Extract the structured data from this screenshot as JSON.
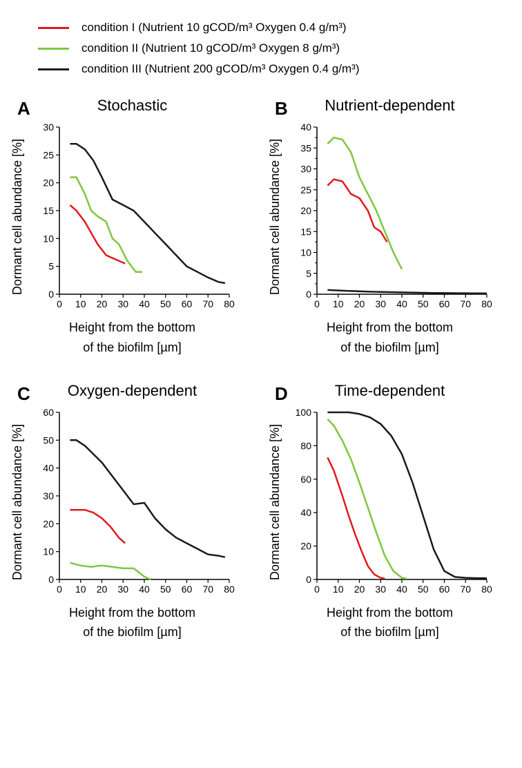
{
  "legend": {
    "items": [
      {
        "label": "condition I   (Nutrient 10 gCOD/m³ Oxygen 0.4 g/m³)",
        "color": "#e31a1c"
      },
      {
        "label": "condition II  (Nutrient 10 gCOD/m³ Oxygen 8 g/m³)",
        "color": "#7ec63f"
      },
      {
        "label": "condition III (Nutrient 200 gCOD/m³ Oxygen 0.4 g/m³)",
        "color": "#1a1a1a"
      }
    ]
  },
  "axis_labels": {
    "y": "Dormant cell abundance [%]",
    "x_line1": "Height from the bottom",
    "x_line2": "of the biofilm [µm]"
  },
  "colors": {
    "cond1": "#e31a1c",
    "cond2": "#7ec63f",
    "cond3": "#1a1a1a",
    "axis": "#000000",
    "bg": "#ffffff"
  },
  "style": {
    "line_width": 2.5,
    "axis_width": 1.5,
    "tick_len": 5,
    "minor_tick_len": 3,
    "title_fontsize": 22,
    "label_fontsize": 18,
    "tick_fontsize": 14,
    "letter_fontsize": 26
  },
  "panels": [
    {
      "id": "A",
      "title": "Stochastic",
      "xlim": [
        0,
        80
      ],
      "xticks": [
        0,
        10,
        20,
        30,
        40,
        50,
        60,
        70,
        80
      ],
      "ylim": [
        0,
        30
      ],
      "yticks": [
        0,
        5,
        10,
        15,
        20,
        25,
        30
      ],
      "series": {
        "cond1": [
          [
            5,
            16
          ],
          [
            8,
            15
          ],
          [
            12,
            13
          ],
          [
            15,
            11
          ],
          [
            18,
            9
          ],
          [
            22,
            7
          ],
          [
            25,
            6.5
          ],
          [
            28,
            6
          ],
          [
            31,
            5.5
          ]
        ],
        "cond2": [
          [
            5,
            21
          ],
          [
            8,
            21
          ],
          [
            12,
            18
          ],
          [
            15,
            15
          ],
          [
            18,
            14
          ],
          [
            22,
            13
          ],
          [
            25,
            10
          ],
          [
            28,
            9
          ],
          [
            32,
            6
          ],
          [
            36,
            4
          ],
          [
            39,
            4
          ]
        ],
        "cond3": [
          [
            5,
            27
          ],
          [
            8,
            27
          ],
          [
            12,
            26
          ],
          [
            16,
            24
          ],
          [
            20,
            21
          ],
          [
            25,
            17
          ],
          [
            30,
            16
          ],
          [
            35,
            15
          ],
          [
            40,
            13
          ],
          [
            45,
            11
          ],
          [
            50,
            9
          ],
          [
            55,
            7
          ],
          [
            60,
            5
          ],
          [
            65,
            4
          ],
          [
            70,
            3
          ],
          [
            75,
            2.2
          ],
          [
            78,
            2
          ]
        ]
      }
    },
    {
      "id": "B",
      "title": "Nutrient-dependent",
      "xlim": [
        0,
        80
      ],
      "xticks": [
        0,
        10,
        20,
        30,
        40,
        50,
        60,
        70,
        80
      ],
      "ylim": [
        0,
        40
      ],
      "yticks": [
        0,
        5,
        10,
        15,
        20,
        25,
        30,
        35,
        40
      ],
      "y_minor_step": 2.5,
      "series": {
        "cond1": [
          [
            5,
            26
          ],
          [
            8,
            27.5
          ],
          [
            12,
            27
          ],
          [
            16,
            24
          ],
          [
            20,
            23
          ],
          [
            24,
            20
          ],
          [
            27,
            16
          ],
          [
            30,
            15
          ],
          [
            33,
            12.5
          ]
        ],
        "cond2": [
          [
            5,
            36
          ],
          [
            8,
            37.5
          ],
          [
            12,
            37
          ],
          [
            16,
            34
          ],
          [
            20,
            28
          ],
          [
            24,
            24
          ],
          [
            28,
            20
          ],
          [
            32,
            15
          ],
          [
            36,
            10
          ],
          [
            40,
            6
          ]
        ],
        "cond3": [
          [
            5,
            1
          ],
          [
            15,
            0.8
          ],
          [
            25,
            0.6
          ],
          [
            35,
            0.5
          ],
          [
            45,
            0.4
          ],
          [
            55,
            0.3
          ],
          [
            65,
            0.25
          ],
          [
            75,
            0.2
          ],
          [
            80,
            0.2
          ]
        ]
      }
    },
    {
      "id": "C",
      "title": "Oxygen-dependent",
      "xlim": [
        0,
        80
      ],
      "xticks": [
        0,
        10,
        20,
        30,
        40,
        50,
        60,
        70,
        80
      ],
      "ylim": [
        0,
        60
      ],
      "yticks": [
        0,
        10,
        20,
        30,
        40,
        50,
        60
      ],
      "series": {
        "cond1": [
          [
            5,
            25
          ],
          [
            8,
            25
          ],
          [
            12,
            25
          ],
          [
            16,
            24
          ],
          [
            20,
            22
          ],
          [
            24,
            19
          ],
          [
            28,
            15
          ],
          [
            31,
            13
          ]
        ],
        "cond2": [
          [
            5,
            6
          ],
          [
            10,
            5
          ],
          [
            15,
            4.5
          ],
          [
            20,
            5
          ],
          [
            25,
            4.5
          ],
          [
            30,
            4
          ],
          [
            35,
            4
          ],
          [
            40,
            1
          ],
          [
            43,
            0
          ]
        ],
        "cond3": [
          [
            5,
            50
          ],
          [
            8,
            50
          ],
          [
            12,
            48
          ],
          [
            16,
            45
          ],
          [
            20,
            42
          ],
          [
            25,
            37
          ],
          [
            30,
            32
          ],
          [
            35,
            27
          ],
          [
            40,
            27.5
          ],
          [
            45,
            22
          ],
          [
            50,
            18
          ],
          [
            55,
            15
          ],
          [
            60,
            13
          ],
          [
            65,
            11
          ],
          [
            70,
            9
          ],
          [
            75,
            8.5
          ],
          [
            78,
            8
          ]
        ]
      }
    },
    {
      "id": "D",
      "title": "Time-dependent",
      "xlim": [
        0,
        80
      ],
      "xticks": [
        0,
        10,
        20,
        30,
        40,
        50,
        60,
        70,
        80
      ],
      "ylim": [
        0,
        100
      ],
      "yticks": [
        0,
        20,
        40,
        60,
        80,
        100
      ],
      "series": {
        "cond1": [
          [
            5,
            73
          ],
          [
            8,
            65
          ],
          [
            12,
            50
          ],
          [
            15,
            38
          ],
          [
            18,
            27
          ],
          [
            21,
            17
          ],
          [
            24,
            8
          ],
          [
            27,
            3
          ],
          [
            30,
            1
          ],
          [
            32,
            0.5
          ]
        ],
        "cond2": [
          [
            5,
            96
          ],
          [
            8,
            92
          ],
          [
            12,
            83
          ],
          [
            16,
            72
          ],
          [
            20,
            58
          ],
          [
            24,
            43
          ],
          [
            28,
            28
          ],
          [
            32,
            14
          ],
          [
            36,
            5
          ],
          [
            40,
            1
          ],
          [
            42,
            0.5
          ]
        ],
        "cond3": [
          [
            5,
            100
          ],
          [
            10,
            100
          ],
          [
            15,
            100
          ],
          [
            20,
            99
          ],
          [
            25,
            97
          ],
          [
            30,
            93
          ],
          [
            35,
            86
          ],
          [
            40,
            75
          ],
          [
            45,
            58
          ],
          [
            50,
            38
          ],
          [
            55,
            18
          ],
          [
            60,
            5
          ],
          [
            65,
            1.5
          ],
          [
            70,
            1
          ],
          [
            75,
            0.8
          ],
          [
            80,
            0.7
          ]
        ]
      }
    }
  ]
}
